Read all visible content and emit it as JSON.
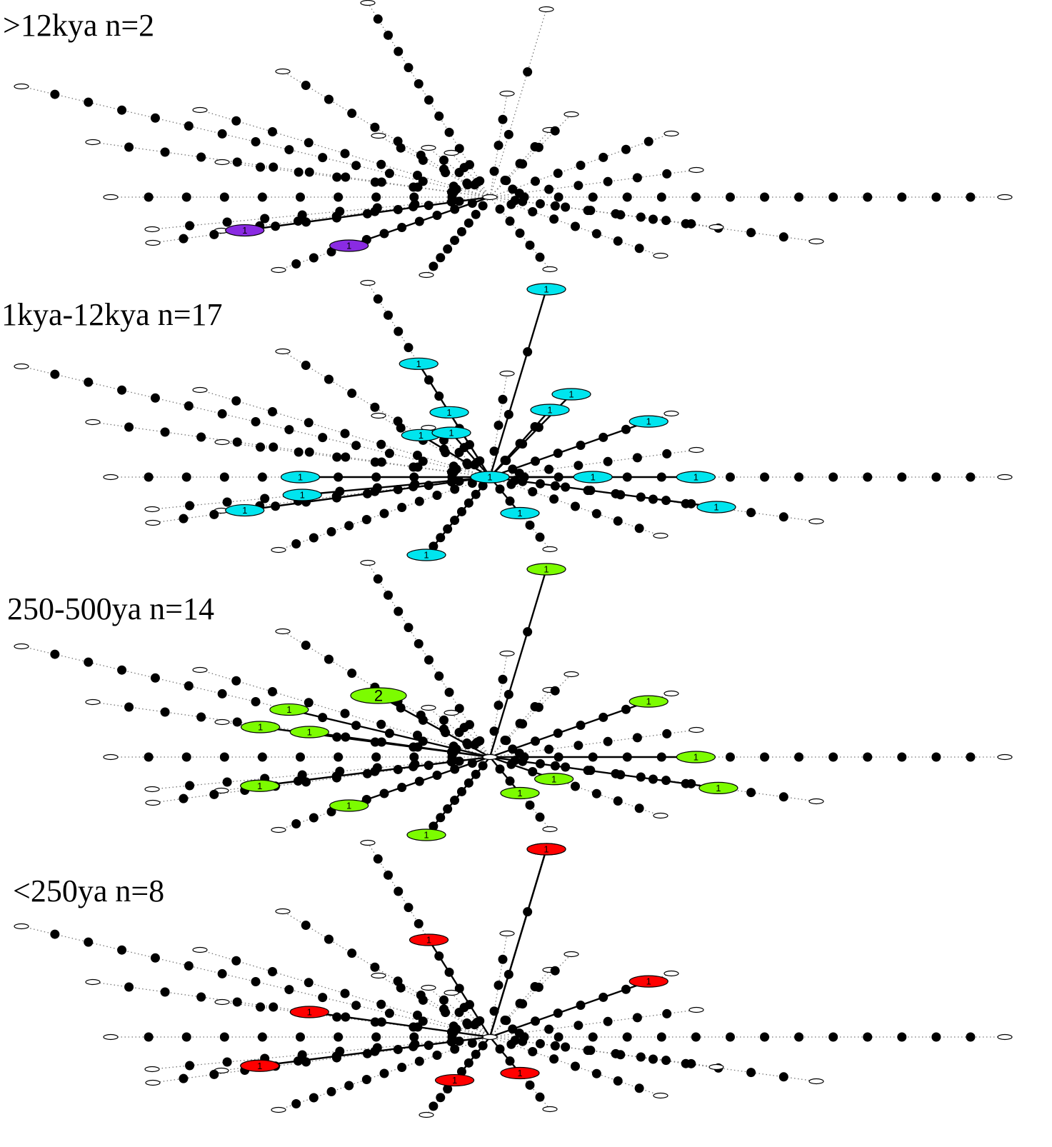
{
  "panels": [
    {
      "label": ">12kya n=2",
      "color": "#8a2be2",
      "sampled": [
        {
          "branch": 14,
          "step": 8,
          "count": "1"
        },
        {
          "branch": 15,
          "step": 8,
          "count": "1"
        }
      ]
    },
    {
      "label": "1kya-12kya n=17",
      "color": "#00e5ee",
      "sampled": [
        {
          "branch": "center",
          "count": "1"
        },
        {
          "branch": 0,
          "step": 4,
          "count": "1"
        },
        {
          "branch": 0,
          "step": 7,
          "count": "1"
        },
        {
          "branch": 3,
          "step": 5,
          "count": "1"
        },
        {
          "branch": 4,
          "step": 5,
          "count": "1"
        },
        {
          "branch": 5,
          "step": 9,
          "count": "1"
        },
        {
          "branch": 6,
          "step": 3,
          "count": "1"
        },
        {
          "branch": 9,
          "step": 3,
          "count": "1"
        },
        {
          "branch": 9,
          "step": 6,
          "count": "1"
        },
        {
          "branch": 11,
          "step": 7,
          "count": "1"
        },
        {
          "branch": 12,
          "step": 9,
          "count": "1"
        },
        {
          "branch": 14,
          "step": 8,
          "count": "1"
        },
        {
          "branch": 16,
          "step": 3,
          "count": "1"
        },
        {
          "branch": 20,
          "step": 14,
          "count": "1"
        },
        {
          "branch": 21,
          "step": 14,
          "count": "1"
        },
        {
          "branch": 23,
          "step": 9,
          "count": "1"
        },
        {
          "branch": 25,
          "step": 3,
          "count": "1"
        }
      ]
    },
    {
      "label": "250-500ya n=14",
      "color": "#7cfc00",
      "sampled": [
        {
          "branch": 1,
          "step": 6,
          "count": "1"
        },
        {
          "branch": 2,
          "step": 5,
          "count": "1"
        },
        {
          "branch": 5,
          "step": 9,
          "count": "1"
        },
        {
          "branch": 6,
          "step": 3,
          "count": "1"
        },
        {
          "branch": 7,
          "step": 3,
          "count": "1"
        },
        {
          "branch": 8,
          "step": 7,
          "count": "1"
        },
        {
          "branch": 9,
          "step": 6,
          "count": "1"
        },
        {
          "branch": 11,
          "step": 7,
          "count": "1"
        },
        {
          "branch": 12,
          "step": 9,
          "count": "1"
        },
        {
          "branch": 13,
          "step": 6,
          "count": "1"
        },
        {
          "branch": 15,
          "step": 8,
          "count": "1"
        },
        {
          "branch": 18,
          "step": 6,
          "count": "1"
        },
        {
          "branch": 19,
          "step": 9,
          "count": "2"
        }
      ]
    },
    {
      "label": "<250ya n=8",
      "color": "#ff0000",
      "sampled": [
        {
          "branch": 0,
          "step": 6,
          "count": "1"
        },
        {
          "branch": 2,
          "step": 5,
          "count": "1"
        },
        {
          "branch": 5,
          "step": 5,
          "count": "1"
        },
        {
          "branch": 6,
          "step": 3,
          "count": "1"
        },
        {
          "branch": 11,
          "step": 7,
          "count": "1"
        },
        {
          "branch": 12,
          "step": 9,
          "count": "1"
        },
        {
          "branch": 12,
          "step": 5,
          "count": "1"
        },
        {
          "branch": 13,
          "step": 6,
          "count": "1"
        }
      ]
    }
  ]
}
